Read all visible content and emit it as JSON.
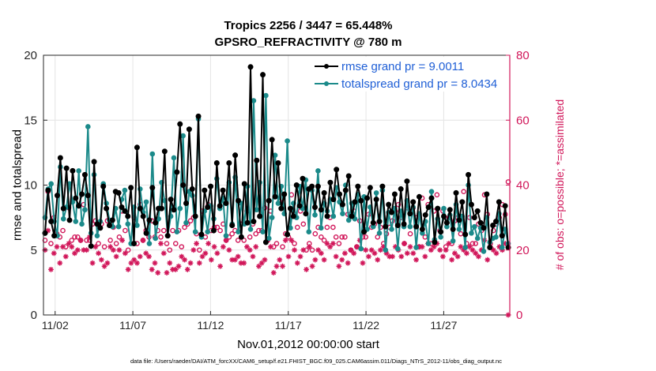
{
  "chart_data": {
    "type": "line",
    "title": "Tropics 2256 / 3447 = 65.448%",
    "subtitle": "GPSRO_REFRACTIVITY @ 780 m",
    "xlabel": "Nov.01,2012 00:00:00 start",
    "ylabel_left": "rmse and totalspread",
    "ylabel_right": "# of obs: o=possible; *=assimilated",
    "footnote": "data file: /Users/raeder/DAI/ATM_forcXX/CAM6_setup/f.e21.FHIST_BGC.f09_025.CAM6assim.011/Diags_NTrS_2012-11/obs_diag_output.nc",
    "x_ticks": [
      "11/02",
      "11/07",
      "11/12",
      "11/17",
      "11/22",
      "11/27"
    ],
    "x_tick_values": [
      1.5,
      6.5,
      11.5,
      16.5,
      21.5,
      26.5
    ],
    "xlim": [
      0.75,
      30.75
    ],
    "ylim_left": [
      0,
      20
    ],
    "y_ticks_left": [
      "0",
      "5",
      "10",
      "15",
      "20"
    ],
    "ylim_right": [
      0,
      80
    ],
    "y_ticks_right": [
      "0",
      "20",
      "40",
      "60",
      "80"
    ],
    "grid": true,
    "legend_position": "top-right",
    "series": [
      {
        "name": "rmse",
        "legend": "rmse grand pr = 9.0011",
        "color": "#000000",
        "axis": "left",
        "values": [
          6.3,
          9.6,
          7.2,
          6.1,
          9.2,
          12.1,
          8.2,
          11.3,
          7.3,
          11.1,
          9.0,
          8.4,
          9.3,
          10.8,
          9.2,
          5.3,
          11.8,
          7.0,
          6.7,
          9.9,
          8.2,
          6.9,
          7.3,
          9.5,
          9.4,
          8.3,
          8.0,
          7.6,
          9.8,
          5.5,
          12.9,
          8.2,
          7.6,
          6.3,
          7.3,
          9.8,
          7.1,
          8.2,
          8.2,
          12.6,
          6.1,
          8.9,
          8.1,
          11.0,
          14.7,
          10.0,
          8.6,
          14.3,
          9.7,
          7.6,
          15.3,
          6.2,
          9.6,
          8.3,
          9.9,
          6.5,
          11.7,
          8.4,
          9.6,
          8.6,
          11.7,
          6.9,
          12.3,
          8.8,
          6.0,
          10.1,
          7.1,
          19.1,
          7.2,
          11.9,
          7.6,
          18.5,
          5.6,
          8.8,
          13.5,
          9.1,
          11.7,
          8.2,
          9.3,
          6.2,
          8.2,
          7.6,
          10.0,
          8.4,
          10.5,
          7.8,
          9.7,
          9.9,
          8.3,
          9.9,
          8.1,
          9.4,
          7.6,
          10.2,
          8.9,
          11.2,
          9.3,
          8.5,
          9.6,
          10.7,
          7.6,
          8.7,
          9.9,
          8.8,
          6.4,
          9.0,
          9.8,
          7.1,
          8.9,
          7.2,
          9.9,
          6.8,
          8.5,
          7.9,
          9.3,
          6.9,
          9.7,
          7.0,
          10.3,
          7.8,
          8.7,
          6.8,
          9.1,
          6.6,
          7.7,
          8.3,
          9.0,
          5.6,
          8.2,
          6.4,
          7.6,
          7.1,
          8.1,
          6.6,
          9.4,
          7.3,
          8.7,
          6.2,
          10.8,
          8.5,
          7.5,
          8.0,
          7.1,
          6.7,
          9.3,
          5.2,
          6.9,
          7.2,
          8.7,
          6.1,
          8.4,
          5.2
        ]
      },
      {
        "name": "totalspread",
        "legend": "totalspread grand pr = 8.0434",
        "color": "#1b8a8a",
        "axis": "left",
        "values": [
          7.5,
          9.7,
          10.1,
          7.2,
          6.1,
          11.4,
          7.4,
          8.3,
          10.1,
          8.7,
          7.2,
          11.1,
          7.0,
          8.1,
          14.5,
          6.3,
          10.8,
          6.1,
          7.2,
          10.1,
          8.6,
          7.3,
          6.8,
          8.2,
          6.8,
          8.9,
          9.6,
          7.0,
          5.5,
          8.3,
          6.9,
          9.7,
          7.9,
          8.7,
          5.5,
          12.4,
          5.9,
          7.4,
          10.2,
          8.8,
          6.1,
          7.6,
          12.1,
          6.4,
          8.2,
          13.8,
          7.1,
          9.5,
          9.2,
          6.4,
          15.1,
          6.0,
          8.0,
          6.4,
          8.4,
          7.4,
          10.5,
          8.2,
          9.0,
          6.1,
          10.2,
          7.0,
          10.6,
          6.4,
          8.6,
          7.0,
          9.9,
          6.6,
          16.5,
          8.1,
          10.2,
          6.4,
          16.9,
          5.9,
          7.5,
          12.3,
          8.6,
          9.9,
          7.8,
          13.4,
          6.7,
          8.6,
          7.5,
          9.9,
          8.2,
          10.4,
          6.4,
          9.6,
          7.7,
          11.1,
          6.7,
          8.6,
          8.0,
          8.9,
          7.6,
          9.8,
          8.7,
          7.8,
          10.0,
          7.3,
          8.6,
          7.4,
          9.3,
          5.1,
          9.1,
          6.6,
          8.3,
          6.8,
          9.4,
          6.3,
          9.6,
          5.0,
          7.9,
          6.6,
          8.2,
          5.1,
          8.0,
          6.8,
          8.8,
          6.8,
          8.3,
          5.2,
          7.8,
          6.3,
          7.2,
          5.5,
          9.5,
          5.8,
          7.4,
          6.0,
          8.2,
          6.8,
          7.7,
          5.7,
          8.5,
          6.6,
          7.6,
          5.2,
          10.0,
          6.3,
          6.8,
          5.9,
          6.7,
          4.9,
          7.5,
          5.6,
          5.9,
          6.0,
          7.8,
          5.2,
          6.6,
          5.5
        ]
      },
      {
        "name": "# possible (o)",
        "color": "#d1175a",
        "axis": "right",
        "marker": "circle",
        "values": [
          23,
          38,
          22,
          30,
          25,
          24,
          26,
          21,
          33,
          23,
          24,
          24,
          23,
          34,
          23,
          23,
          28,
          29,
          22,
          28,
          21,
          29,
          23,
          27,
          22,
          24,
          32,
          26,
          20,
          22,
          30,
          22,
          34,
          23,
          26,
          24,
          29,
          24,
          26,
          24,
          26,
          22,
          20,
          26,
          22,
          26,
          21,
          27,
          28,
          29,
          30,
          25,
          20,
          32,
          24,
          34,
          26,
          27,
          27,
          26,
          28,
          23,
          24,
          25,
          26,
          23,
          28,
          23,
          32,
          24,
          28,
          25,
          26,
          26,
          33,
          23,
          32,
          21,
          22,
          35,
          21,
          25,
          24,
          37,
          22,
          27,
          32,
          28,
          20,
          22,
          20,
          25,
          27,
          24,
          23,
          27,
          30,
          27,
          24,
          22,
          24,
          24,
          31,
          20,
          32,
          21,
          29,
          24,
          24,
          31,
          27,
          28,
          24,
          27,
          22,
          25,
          27,
          29,
          32,
          34,
          30,
          22,
          33,
          25,
          33,
          30,
          21,
          36,
          24,
          34,
          22,
          32,
          37,
          26,
          32,
          21,
          30,
          22,
          29,
          30,
          25,
          38,
          22,
          30,
          22,
          22,
          28,
          26,
          37,
          31,
          22,
          26,
          28,
          30,
          34,
          31,
          41
        ]
      },
      {
        "name": "# assimilated (*)",
        "color": "#d1175a",
        "axis": "right",
        "marker": "asterisk",
        "values": [
          20,
          26,
          14,
          19,
          21,
          16,
          21,
          18,
          22,
          21,
          19,
          20,
          23,
          20,
          20,
          24,
          16,
          21,
          19,
          17,
          15,
          16,
          21,
          20,
          18,
          20,
          23,
          19,
          14,
          16,
          17,
          16,
          18,
          23,
          19,
          18,
          14,
          16,
          13,
          22,
          19,
          13,
          16,
          14,
          14,
          15,
          18,
          17,
          14,
          16,
          20,
          22,
          16,
          18,
          19,
          22,
          17,
          21,
          19,
          15,
          21,
          23,
          20,
          17,
          17,
          18,
          16,
          16,
          21,
          20,
          18,
          21,
          15,
          16,
          17,
          23,
          21,
          13,
          15,
          17,
          15,
          23,
          18,
          23,
          20,
          16,
          18,
          20,
          14,
          21,
          15,
          17,
          20,
          19,
          17,
          22,
          21,
          22,
          18,
          15,
          17,
          19,
          16,
          20,
          19,
          21,
          23,
          16,
          20,
          18,
          20,
          19,
          17,
          20,
          21,
          19,
          18,
          18,
          21,
          20,
          18,
          22,
          19,
          21,
          19,
          17,
          21,
          21,
          18,
          22,
          20,
          21,
          22,
          20,
          18,
          20,
          22,
          17,
          19,
          18,
          21,
          20,
          19,
          21,
          20,
          19,
          18,
          20,
          23,
          17,
          21,
          20,
          19,
          21,
          20,
          22,
          0
        ]
      }
    ]
  }
}
